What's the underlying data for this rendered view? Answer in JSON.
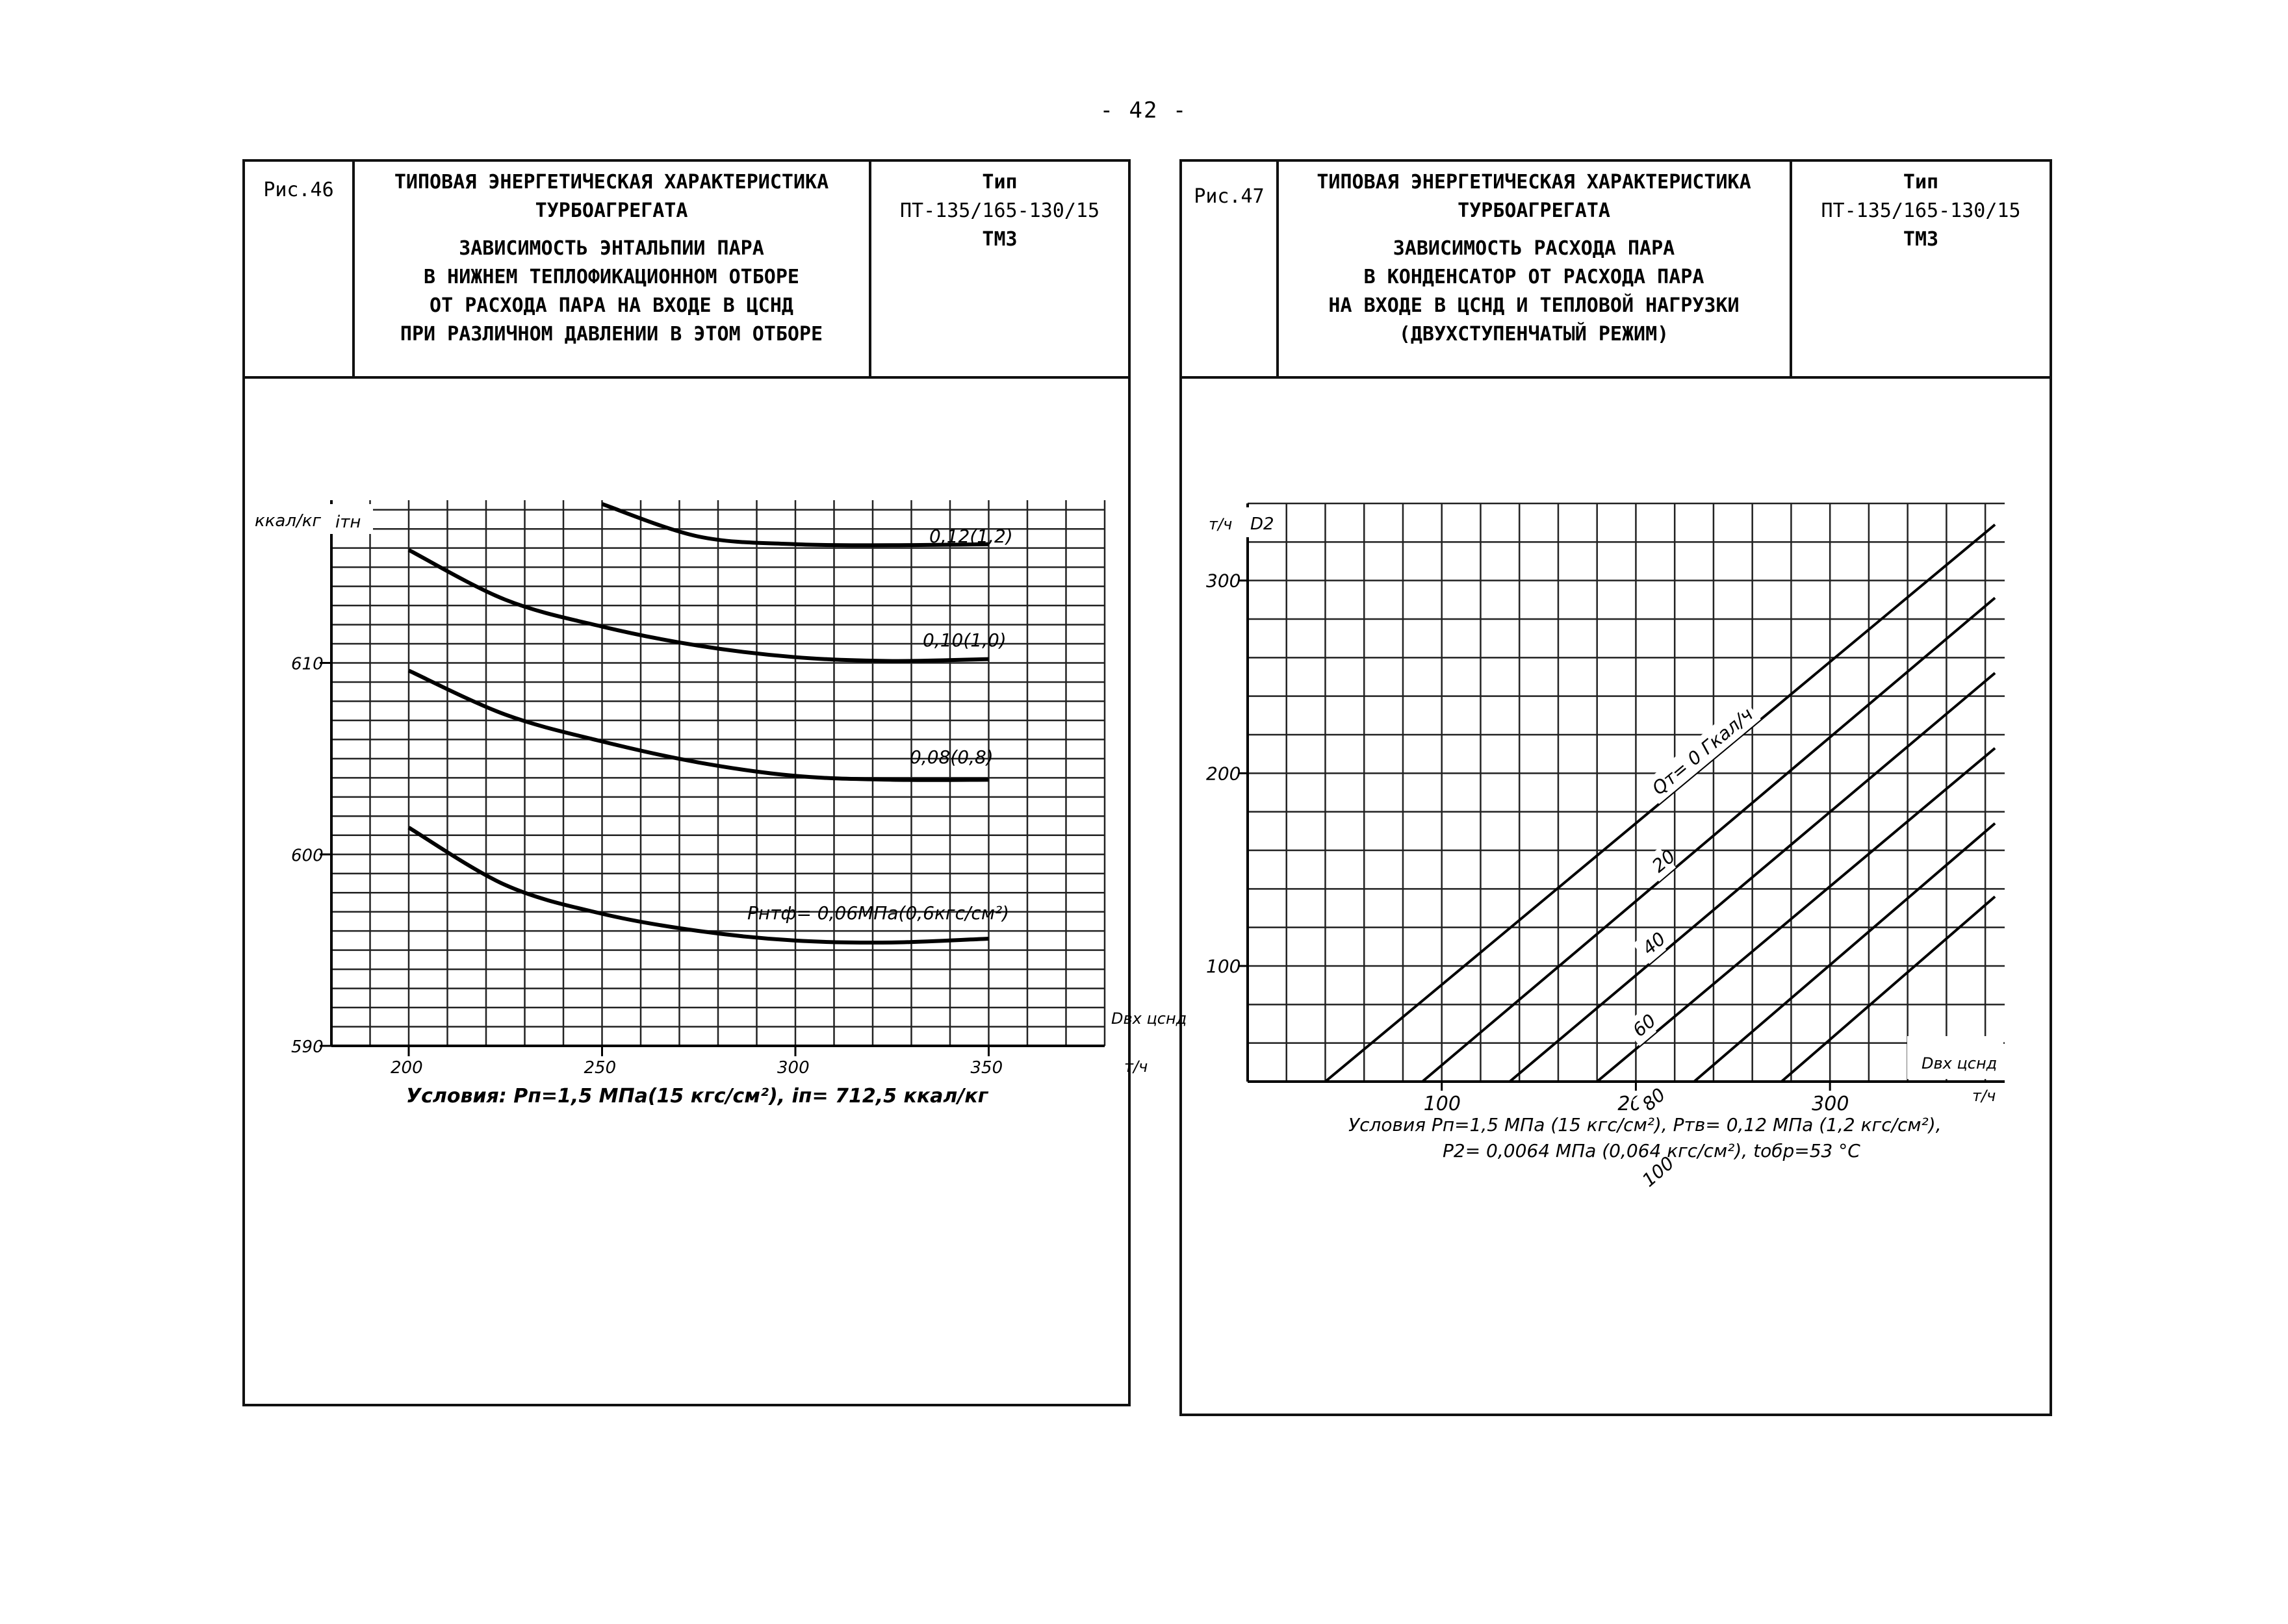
{
  "page_number": "- 42 -",
  "figures": [
    {
      "fig_label": "Рис.46",
      "title_lines": [
        "ТИПОВАЯ ЭНЕРГЕТИЧЕСКАЯ ХАРАКТЕРИСТИКА",
        "ТУРБОАГРЕГАТА"
      ],
      "subtitle_lines": [
        "ЗАВИСИМОСТЬ ЭНТАЛЬПИИ ПАРА",
        "В НИЖНЕМ ТЕПЛОФИКАЦИОННОМ ОТБОРЕ",
        "ОТ РАСХОДА ПАРА НА ВХОДЕ В ЦСНД",
        "ПРИ РАЗЛИЧНОМ ДАВЛЕНИИ В ЭТОМ ОТБОРЕ"
      ],
      "type_lines": [
        "Тип",
        "ПТ-135/165-130/15",
        "ТМЗ"
      ],
      "conditions_lines": [
        "Условия: Pп=1,5 МПа(15 кгс/см²), iп= 712,5 ккал/кг"
      ]
    },
    {
      "fig_label": "Рис.47",
      "title_lines": [
        "ТИПОВАЯ ЭНЕРГЕТИЧЕСКАЯ ХАРАКТЕРИСТИКА",
        "ТУРБОАГРЕГАТА"
      ],
      "subtitle_lines": [
        "ЗАВИСИМОСТЬ РАСХОДА ПАРА",
        "В КОНДЕНСАТОР ОТ РАСХОДА ПАРА",
        "НА ВХОДЕ В ЦСНД И ТЕПЛОВОЙ НАГРУЗКИ",
        "(ДВУХСТУПЕНЧАТЫЙ РЕЖИМ)"
      ],
      "type_lines": [
        "Тип",
        "ПТ-135/165-130/15",
        "ТМЗ"
      ],
      "conditions_lines": [
        "Условия Pп=1,5 МПа (15 кгс/см²), Pтв= 0,12 МПа (1,2 кгс/см²),",
        "P2= 0,0064 МПа (0,064 кгс/см²), tобр=53 °С"
      ]
    }
  ],
  "chart_data": [
    {
      "type": "line",
      "id": "fig46",
      "ylabel_unit": "ккал/кг",
      "ylabel_symbol": "iтн",
      "xlabel_symbol": "Dвх цснд",
      "xlabel_unit": "т/ч",
      "xlim": [
        180,
        380
      ],
      "ylim": [
        590,
        618.5
      ],
      "xticks": [
        200,
        250,
        300,
        350
      ],
      "xtick_labels": [
        "200",
        "250",
        "300",
        "350"
      ],
      "yticks": [
        590,
        600,
        610
      ],
      "ytick_labels": [
        "590",
        "600",
        "610"
      ],
      "grid": true,
      "series": [
        {
          "name": "0,12(1,2)",
          "x": [
            250,
            275,
            300,
            325,
            350
          ],
          "y": [
            618.3,
            616.6,
            616.2,
            616.15,
            616.2
          ]
        },
        {
          "name": "0,10(1,0)",
          "x": [
            200,
            225,
            250,
            275,
            300,
            325,
            350
          ],
          "y": [
            615.9,
            613.3,
            611.9,
            610.9,
            610.3,
            610.1,
            610.2
          ]
        },
        {
          "name": "0,08(0,8)",
          "x": [
            200,
            225,
            250,
            275,
            300,
            325,
            350
          ],
          "y": [
            609.6,
            607.3,
            605.9,
            604.8,
            604.1,
            603.9,
            603.9
          ]
        },
        {
          "name": "Pнтф= 0,06МПа(0,6кгс/см²)",
          "x": [
            200,
            225,
            250,
            275,
            300,
            325,
            350
          ],
          "y": [
            601.4,
            598.4,
            596.9,
            596.0,
            595.5,
            595.4,
            595.6
          ]
        }
      ]
    },
    {
      "type": "line",
      "id": "fig47",
      "ylabel_unit": "т/ч",
      "ylabel_symbol": "D2",
      "xlabel_symbol": "Dвх цснд",
      "xlabel_unit": "т/ч",
      "xlim": [
        0,
        390
      ],
      "ylim": [
        40,
        340
      ],
      "xticks": [
        100,
        200,
        300
      ],
      "xtick_labels": [
        "100",
        "200",
        "300"
      ],
      "yticks": [
        100,
        200,
        300
      ],
      "ytick_labels": [
        "100",
        "200",
        "300"
      ],
      "grid": true,
      "series": [
        {
          "name": "Qт= 0 Гкал/ч",
          "x": [
            40,
            385
          ],
          "y": [
            40,
            329
          ]
        },
        {
          "name": "20",
          "x": [
            90,
            385
          ],
          "y": [
            40,
            291
          ]
        },
        {
          "name": "40",
          "x": [
            135,
            385
          ],
          "y": [
            40,
            252
          ]
        },
        {
          "name": "60",
          "x": [
            180,
            385
          ],
          "y": [
            40,
            213
          ]
        },
        {
          "name": "80",
          "x": [
            230,
            385
          ],
          "y": [
            40,
            174
          ]
        },
        {
          "name": "100",
          "x": [
            275,
            385
          ],
          "y": [
            40,
            136
          ]
        }
      ]
    }
  ]
}
